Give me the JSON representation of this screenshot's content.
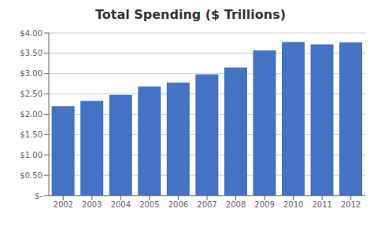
{
  "chart_data": {
    "type": "bar",
    "title": "Total Spending ($ Trillions)",
    "categories": [
      "2002",
      "2003",
      "2004",
      "2005",
      "2006",
      "2007",
      "2008",
      "2009",
      "2010",
      "2011",
      "2012"
    ],
    "values": [
      2.2,
      2.33,
      2.48,
      2.68,
      2.78,
      2.98,
      3.15,
      3.57,
      3.78,
      3.72,
      3.77
    ],
    "color": "#4472C4",
    "ylim": [
      0,
      4.0
    ],
    "yticks": [
      {
        "value": 0,
        "label": "$-"
      },
      {
        "value": 0.5,
        "label": "$0.50"
      },
      {
        "value": 1.0,
        "label": "$1.00"
      },
      {
        "value": 1.5,
        "label": "$1.50"
      },
      {
        "value": 2.0,
        "label": "$2.00"
      },
      {
        "value": 2.5,
        "label": "$2.50"
      },
      {
        "value": 3.0,
        "label": "$3.00"
      },
      {
        "value": 3.5,
        "label": "$3.50"
      },
      {
        "value": 4.0,
        "label": "$4.00"
      }
    ],
    "grid": true
  }
}
